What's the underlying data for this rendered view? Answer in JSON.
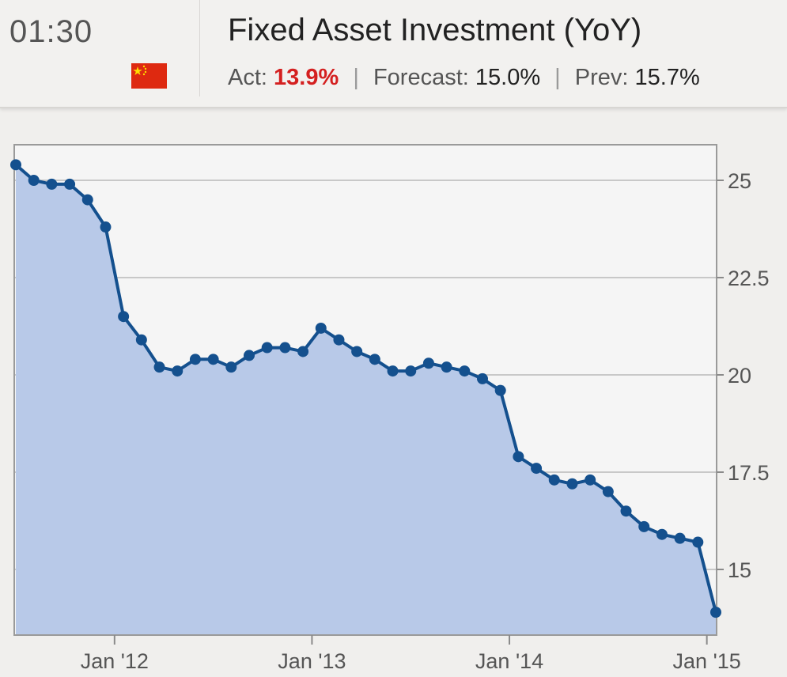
{
  "header": {
    "time": "01:30",
    "flag_icon": "china-flag-icon",
    "title": "Fixed Asset Investment (YoY)",
    "actual_label": "Act:",
    "actual_value": "13.9%",
    "forecast_label": "Forecast:",
    "forecast_value": "15.0%",
    "previous_label": "Prev:",
    "previous_value": "15.7%",
    "separator": "|",
    "colors": {
      "actual": "#d42020",
      "flag_red": "#de2910",
      "flag_star": "#ffde00"
    }
  },
  "chart_data": {
    "type": "area",
    "x_ticks": [
      "Jan '12",
      "Jan '13",
      "Jan '14",
      "Jan '15"
    ],
    "y_ticks": [
      "15",
      "17.5",
      "20",
      "22.5",
      "25"
    ],
    "ylim": [
      13.5,
      26.0
    ],
    "grid": true,
    "y_axis_side": "right",
    "colors": {
      "line": "#14508e",
      "fill": "#b8c9e8",
      "grid": "#c8c8c8",
      "plot_bg": "#f5f5f5"
    },
    "series": [
      {
        "x": [
          "Jul '11",
          "Aug '11",
          "Sep '11",
          "Oct '11",
          "Nov '11",
          "Dec '11",
          "Feb '12",
          "Mar '12",
          "Apr '12",
          "May '12",
          "Jun '12",
          "Jul '12",
          "Aug '12",
          "Sep '12",
          "Oct '12",
          "Nov '12",
          "Dec '12",
          "Feb '13",
          "Mar '13",
          "Apr '13",
          "May '13",
          "Jun '13",
          "Jul '13",
          "Aug '13",
          "Sep '13",
          "Oct '13",
          "Nov '13",
          "Dec '13",
          "Feb '14",
          "Mar '14",
          "Apr '14",
          "May '14",
          "Jun '14",
          "Jul '14",
          "Aug '14",
          "Sep '14",
          "Oct '14",
          "Nov '14",
          "Dec '14",
          "Feb '15"
        ],
        "values": [
          25.4,
          25.0,
          24.9,
          24.9,
          24.5,
          23.8,
          21.5,
          20.9,
          20.2,
          20.1,
          20.4,
          20.4,
          20.2,
          20.5,
          20.7,
          20.7,
          20.6,
          21.2,
          20.9,
          20.6,
          20.4,
          20.1,
          20.1,
          20.3,
          20.2,
          20.1,
          19.9,
          19.6,
          17.9,
          17.6,
          17.3,
          17.2,
          17.3,
          17.0,
          16.5,
          16.1,
          15.9,
          15.8,
          15.7,
          13.9
        ]
      }
    ]
  }
}
